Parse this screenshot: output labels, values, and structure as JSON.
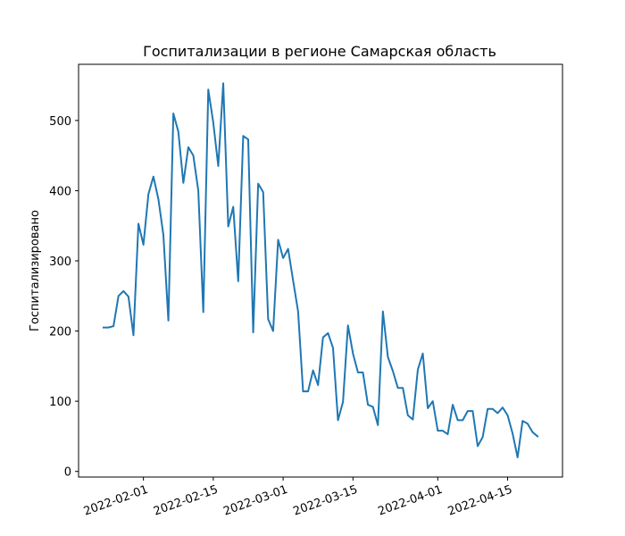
{
  "chart_data": {
    "type": "line",
    "title": "Госпитализации в регионе Самарская область",
    "xlabel": "",
    "ylabel": "Госпитализировано",
    "grid": false,
    "legend": "none",
    "ylim": [
      -8,
      580
    ],
    "xlim": [
      "2022-01-19",
      "2022-04-26"
    ],
    "y_ticks": [
      0,
      100,
      200,
      300,
      400,
      500
    ],
    "x_ticks": [
      "2022-02-01",
      "2022-02-15",
      "2022-03-01",
      "2022-03-15",
      "2022-04-01",
      "2022-04-15"
    ],
    "series": [
      {
        "color": "#1f77b4",
        "x": [
          "2022-01-24",
          "2022-01-25",
          "2022-01-26",
          "2022-01-27",
          "2022-01-28",
          "2022-01-29",
          "2022-01-30",
          "2022-01-31",
          "2022-02-01",
          "2022-02-02",
          "2022-02-03",
          "2022-02-04",
          "2022-02-05",
          "2022-02-06",
          "2022-02-07",
          "2022-02-08",
          "2022-02-09",
          "2022-02-10",
          "2022-02-11",
          "2022-02-12",
          "2022-02-13",
          "2022-02-14",
          "2022-02-15",
          "2022-02-16",
          "2022-02-17",
          "2022-02-18",
          "2022-02-19",
          "2022-02-20",
          "2022-02-21",
          "2022-02-22",
          "2022-02-23",
          "2022-02-24",
          "2022-02-25",
          "2022-02-26",
          "2022-02-27",
          "2022-02-28",
          "2022-03-01",
          "2022-03-02",
          "2022-03-03",
          "2022-03-04",
          "2022-03-05",
          "2022-03-06",
          "2022-03-07",
          "2022-03-08",
          "2022-03-09",
          "2022-03-10",
          "2022-03-11",
          "2022-03-12",
          "2022-03-13",
          "2022-03-14",
          "2022-03-15",
          "2022-03-16",
          "2022-03-17",
          "2022-03-18",
          "2022-03-19",
          "2022-03-20",
          "2022-03-21",
          "2022-03-22",
          "2022-03-23",
          "2022-03-24",
          "2022-03-25",
          "2022-03-26",
          "2022-03-27",
          "2022-03-28",
          "2022-03-29",
          "2022-03-30",
          "2022-03-31",
          "2022-04-01",
          "2022-04-02",
          "2022-04-03",
          "2022-04-04",
          "2022-04-05",
          "2022-04-06",
          "2022-04-07",
          "2022-04-08",
          "2022-04-09",
          "2022-04-10",
          "2022-04-11",
          "2022-04-12",
          "2022-04-13",
          "2022-04-14",
          "2022-04-15",
          "2022-04-16",
          "2022-04-17",
          "2022-04-18",
          "2022-04-19",
          "2022-04-20",
          "2022-04-21"
        ],
        "y": [
          205,
          205,
          207,
          250,
          257,
          249,
          194,
          353,
          323,
          395,
          420,
          388,
          337,
          215,
          510,
          484,
          411,
          462,
          450,
          400,
          227,
          544,
          497,
          435,
          553,
          349,
          377,
          271,
          478,
          473,
          198,
          410,
          398,
          217,
          200,
          330,
          304,
          317,
          272,
          228,
          114,
          114,
          144,
          123,
          191,
          197,
          176,
          73,
          99,
          208,
          168,
          141,
          141,
          95,
          92,
          66,
          228,
          163,
          143,
          119,
          119,
          80,
          74,
          145,
          168,
          90,
          100,
          58,
          58,
          53,
          95,
          73,
          73,
          86,
          86,
          36,
          49,
          89,
          89,
          83,
          91,
          80,
          54,
          20,
          72,
          68,
          56,
          50
        ]
      }
    ]
  }
}
